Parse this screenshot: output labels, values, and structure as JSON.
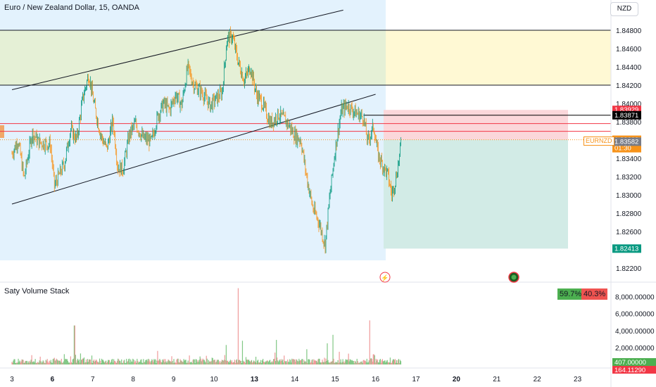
{
  "header": {
    "title": "Euro / New Zealand Dollar, 15, OANDA",
    "currency": "NZD",
    "symbol_tag": "EURNZD"
  },
  "indicator": {
    "title": "Saty Volume Stack",
    "green_pct": "59.7%",
    "red_pct": "40.3%"
  },
  "price_axis": {
    "ticks": [
      "1.84800",
      "1.84600",
      "1.84400",
      "1.84200",
      "1.84000",
      "1.83800",
      "1.83600",
      "1.83400",
      "1.83200",
      "1.83000",
      "1.82800",
      "1.82600",
      "1.82400",
      "1.82200"
    ],
    "tick_values": [
      1.848,
      1.846,
      1.844,
      1.842,
      1.84,
      1.838,
      1.836,
      1.834,
      1.832,
      1.83,
      1.828,
      1.826,
      1.824,
      1.822
    ],
    "labels": [
      {
        "text": "1.83929",
        "value": 1.83929,
        "bg": "#f23645",
        "fg": "#ffffff"
      },
      {
        "text": "1.83871",
        "value": 1.83871,
        "bg": "#000000",
        "fg": "#ffffff"
      },
      {
        "text": "1.83603",
        "value": 1.83603,
        "sub": "01:30",
        "bg": "#f7931a",
        "fg": "#ffffff"
      },
      {
        "text": "1.83582",
        "value": 1.83582,
        "bg": "#787b86",
        "fg": "#ffffff"
      },
      {
        "text": "1.82413",
        "value": 1.82413,
        "bg": "#089981",
        "fg": "#ffffff"
      }
    ]
  },
  "volume_axis": {
    "ticks": [
      "8,000.00000",
      "6,000.00000",
      "4,000.00000",
      "2,000.00000"
    ],
    "tick_values": [
      8000,
      6000,
      4000,
      2000
    ],
    "labels": [
      {
        "text": "407.00000",
        "value": 407,
        "bg": "#4caf50",
        "fg": "#ffffff"
      },
      {
        "text": "164.11290",
        "value": 164.1129,
        "bg": "#f23645",
        "fg": "#ffffff"
      }
    ]
  },
  "time_axis": {
    "labels": [
      {
        "text": "3",
        "bold": false,
        "index": 0
      },
      {
        "text": "6",
        "bold": true,
        "index": 1
      },
      {
        "text": "7",
        "bold": false,
        "index": 2
      },
      {
        "text": "8",
        "bold": false,
        "index": 3
      },
      {
        "text": "9",
        "bold": false,
        "index": 4
      },
      {
        "text": "10",
        "bold": false,
        "index": 5
      },
      {
        "text": "13",
        "bold": true,
        "index": 6
      },
      {
        "text": "14",
        "bold": false,
        "index": 7
      },
      {
        "text": "15",
        "bold": false,
        "index": 8
      },
      {
        "text": "16",
        "bold": false,
        "index": 9
      },
      {
        "text": "17",
        "bold": false,
        "index": 10
      },
      {
        "text": "20",
        "bold": true,
        "index": 11
      },
      {
        "text": "21",
        "bold": false,
        "index": 12
      },
      {
        "text": "22",
        "bold": false,
        "index": 13
      },
      {
        "text": "23",
        "bold": false,
        "index": 14
      }
    ]
  },
  "chart_data": {
    "type": "line",
    "price_path": [
      {
        "t": 0.0,
        "p": 1.8345
      },
      {
        "t": 0.15,
        "p": 1.836
      },
      {
        "t": 0.3,
        "p": 1.8318
      },
      {
        "t": 0.5,
        "p": 1.8368
      },
      {
        "t": 0.65,
        "p": 1.8358
      },
      {
        "t": 0.95,
        "p": 1.8355
      },
      {
        "t": 1.05,
        "p": 1.831
      },
      {
        "t": 1.3,
        "p": 1.8335
      },
      {
        "t": 1.45,
        "p": 1.8372
      },
      {
        "t": 1.6,
        "p": 1.836
      },
      {
        "t": 1.75,
        "p": 1.8405
      },
      {
        "t": 1.9,
        "p": 1.8432
      },
      {
        "t": 2.05,
        "p": 1.8395
      },
      {
        "t": 2.2,
        "p": 1.8365
      },
      {
        "t": 2.35,
        "p": 1.835
      },
      {
        "t": 2.5,
        "p": 1.8382
      },
      {
        "t": 2.62,
        "p": 1.833
      },
      {
        "t": 2.75,
        "p": 1.8328
      },
      {
        "t": 2.9,
        "p": 1.8365
      },
      {
        "t": 3.05,
        "p": 1.8378
      },
      {
        "t": 3.25,
        "p": 1.8362
      },
      {
        "t": 3.45,
        "p": 1.8358
      },
      {
        "t": 3.6,
        "p": 1.8385
      },
      {
        "t": 3.75,
        "p": 1.84
      },
      {
        "t": 3.9,
        "p": 1.8393
      },
      {
        "t": 4.05,
        "p": 1.841
      },
      {
        "t": 4.2,
        "p": 1.8398
      },
      {
        "t": 4.35,
        "p": 1.844
      },
      {
        "t": 4.5,
        "p": 1.842
      },
      {
        "t": 4.7,
        "p": 1.8412
      },
      {
        "t": 4.9,
        "p": 1.8398
      },
      {
        "t": 5.05,
        "p": 1.8405
      },
      {
        "t": 5.2,
        "p": 1.8412
      },
      {
        "t": 5.32,
        "p": 1.847
      },
      {
        "t": 5.45,
        "p": 1.8474
      },
      {
        "t": 5.6,
        "p": 1.8445
      },
      {
        "t": 5.75,
        "p": 1.8425
      },
      {
        "t": 5.9,
        "p": 1.844
      },
      {
        "t": 6.05,
        "p": 1.841
      },
      {
        "t": 6.2,
        "p": 1.84
      },
      {
        "t": 6.4,
        "p": 1.8378
      },
      {
        "t": 6.6,
        "p": 1.8388
      },
      {
        "t": 6.8,
        "p": 1.838
      },
      {
        "t": 7.0,
        "p": 1.8365
      },
      {
        "t": 7.15,
        "p": 1.836
      },
      {
        "t": 7.3,
        "p": 1.8318
      },
      {
        "t": 7.45,
        "p": 1.8285
      },
      {
        "t": 7.6,
        "p": 1.827
      },
      {
        "t": 7.75,
        "p": 1.8245
      },
      {
        "t": 7.85,
        "p": 1.8292
      },
      {
        "t": 8.0,
        "p": 1.835
      },
      {
        "t": 8.15,
        "p": 1.8392
      },
      {
        "t": 8.3,
        "p": 1.8398
      },
      {
        "t": 8.5,
        "p": 1.839
      },
      {
        "t": 8.7,
        "p": 1.8385
      },
      {
        "t": 8.8,
        "p": 1.8358
      },
      {
        "t": 8.95,
        "p": 1.8375
      },
      {
        "t": 9.05,
        "p": 1.8345
      },
      {
        "t": 9.15,
        "p": 1.8335
      },
      {
        "t": 9.3,
        "p": 1.8322
      },
      {
        "t": 9.4,
        "p": 1.83
      },
      {
        "t": 9.5,
        "p": 1.8318
      },
      {
        "t": 9.6,
        "p": 1.8345
      },
      {
        "t": 9.63,
        "p": 1.836
      }
    ],
    "horizontal_lines": [
      {
        "value": 1.848,
        "color": "#131722"
      },
      {
        "value": 1.842,
        "color": "#131722"
      },
      {
        "value": 1.83871,
        "color": "#000000",
        "from_t": 8.7
      },
      {
        "value": 1.8378,
        "color": "#f23645"
      },
      {
        "value": 1.83695,
        "color": "#f23645"
      }
    ],
    "trend_lines": [
      {
        "t1": 0.0,
        "p1": 1.8415,
        "t2": 8.2,
        "p2": 1.8502
      },
      {
        "t1": 0.0,
        "p1": 1.829,
        "t2": 9.0,
        "p2": 1.841
      }
    ],
    "zones": {
      "premium": {
        "from": 1.842,
        "to": 1.848,
        "left_color": "#e5f0d6",
        "right_color": "#fff9d4"
      },
      "stop": {
        "from": 1.83603,
        "to": 1.83929,
        "color": "#fbd7da"
      },
      "target": {
        "from": 1.82413,
        "to": 1.83603,
        "color": "#d2ebe6"
      }
    },
    "volume": {
      "max": 8000,
      "spike_points": [
        {
          "t": 1.55,
          "v": 4600
        },
        {
          "t": 1.7,
          "v": 1300
        },
        {
          "t": 3.6,
          "v": 1600
        },
        {
          "t": 5.3,
          "v": 2300
        },
        {
          "t": 5.6,
          "v": 9000
        },
        {
          "t": 5.7,
          "v": 2800
        },
        {
          "t": 6.55,
          "v": 2900
        },
        {
          "t": 7.3,
          "v": 1800
        },
        {
          "t": 7.8,
          "v": 2500
        },
        {
          "t": 7.95,
          "v": 3500
        },
        {
          "t": 8.1,
          "v": 1500
        },
        {
          "t": 8.85,
          "v": 5200
        },
        {
          "t": 8.95,
          "v": 1200
        }
      ],
      "green_share": 0.597
    }
  }
}
